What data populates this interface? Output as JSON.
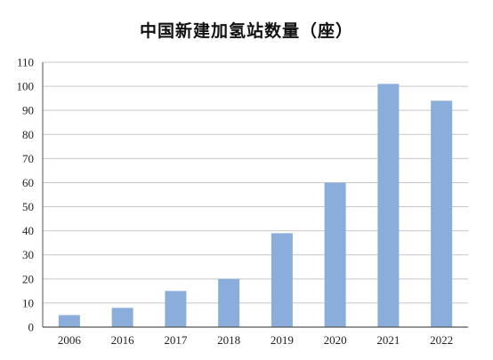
{
  "chart_data": {
    "type": "bar",
    "title": "中国新建加氢站数量（座）",
    "xlabel": "",
    "ylabel": "",
    "categories": [
      "2006",
      "2016",
      "2017",
      "2018",
      "2019",
      "2020",
      "2021",
      "2022"
    ],
    "values": [
      5,
      8,
      15,
      20,
      39,
      60,
      101,
      94
    ],
    "ylim": [
      0,
      110
    ],
    "yticks": [
      "0",
      "10",
      "20",
      "30",
      "40",
      "50",
      "60",
      "70",
      "80",
      "90",
      "100",
      "110"
    ],
    "grid": true,
    "legend": "none",
    "colors": {
      "bar": "#8aaddb",
      "grid": "#c8c8c8",
      "axis": "#555555"
    }
  }
}
